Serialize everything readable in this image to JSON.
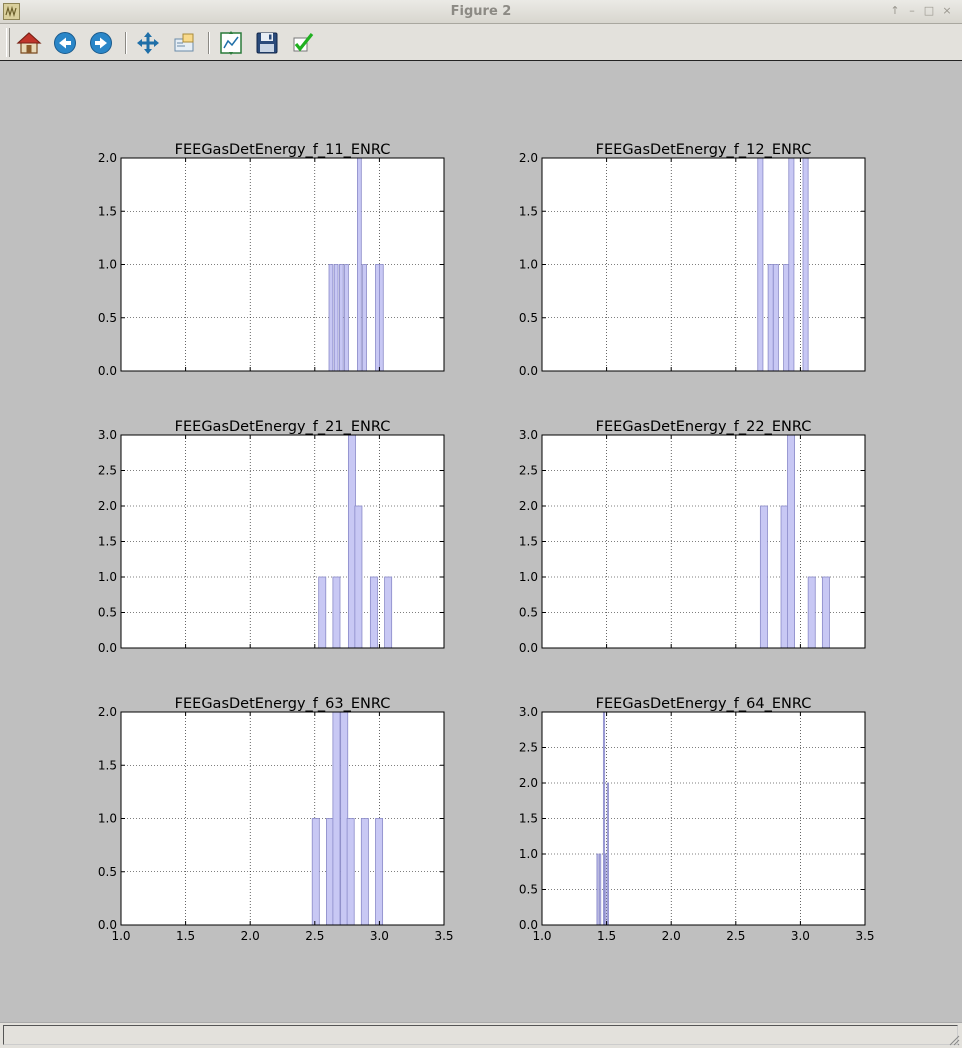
{
  "window": {
    "title": "Figure 2"
  },
  "toolbar": {
    "buttons": [
      {
        "name": "home-button",
        "icon": "home-icon"
      },
      {
        "name": "back-button",
        "icon": "back-arrow-icon"
      },
      {
        "name": "forward-button",
        "icon": "forward-arrow-icon"
      },
      {
        "name": "pan-button",
        "icon": "move-arrows-icon"
      },
      {
        "name": "zoom-button",
        "icon": "zoom-rect-icon"
      },
      {
        "name": "subplots-button",
        "icon": "subplots-icon"
      },
      {
        "name": "save-button",
        "icon": "floppy-disk-icon"
      },
      {
        "name": "edit-button",
        "icon": "checkmark-icon"
      }
    ]
  },
  "colors": {
    "bar_fill": "#c8c8f4",
    "bar_edge": "#8a8ac8",
    "figure_bg": "#bfbfbf",
    "axes_bg": "#ffffff"
  },
  "chart_data": [
    {
      "type": "bar",
      "title": "FEEGasDetEnergy_f_11_ENRC",
      "xlim": [
        1.0,
        3.5
      ],
      "ylim": [
        0.0,
        2.0
      ],
      "xticks": [
        "1.0",
        "1.5",
        "2.0",
        "2.5",
        "3.0",
        "3.5"
      ],
      "yticks": [
        "0.0",
        "0.5",
        "1.0",
        "1.5",
        "2.0"
      ],
      "show_xticklabels": false,
      "grid": true,
      "bars": [
        {
          "x": 2.61,
          "width": 0.03,
          "height": 1
        },
        {
          "x": 2.65,
          "width": 0.03,
          "height": 1
        },
        {
          "x": 2.69,
          "width": 0.03,
          "height": 1
        },
        {
          "x": 2.73,
          "width": 0.03,
          "height": 1
        },
        {
          "x": 2.83,
          "width": 0.03,
          "height": 2
        },
        {
          "x": 2.87,
          "width": 0.03,
          "height": 1
        },
        {
          "x": 2.97,
          "width": 0.03,
          "height": 1
        },
        {
          "x": 3.0,
          "width": 0.03,
          "height": 1
        }
      ]
    },
    {
      "type": "bar",
      "title": "FEEGasDetEnergy_f_12_ENRC",
      "xlim": [
        1.0,
        3.5
      ],
      "ylim": [
        0.0,
        2.0
      ],
      "xticks": [
        "1.0",
        "1.5",
        "2.0",
        "2.5",
        "3.0",
        "3.5"
      ],
      "yticks": [
        "0.0",
        "0.5",
        "1.0",
        "1.5",
        "2.0"
      ],
      "show_xticklabels": false,
      "grid": true,
      "bars": [
        {
          "x": 2.67,
          "width": 0.04,
          "height": 2
        },
        {
          "x": 2.75,
          "width": 0.04,
          "height": 1
        },
        {
          "x": 2.79,
          "width": 0.04,
          "height": 1
        },
        {
          "x": 2.87,
          "width": 0.04,
          "height": 1
        },
        {
          "x": 2.91,
          "width": 0.04,
          "height": 2
        },
        {
          "x": 3.02,
          "width": 0.04,
          "height": 2
        }
      ]
    },
    {
      "type": "bar",
      "title": "FEEGasDetEnergy_f_21_ENRC",
      "xlim": [
        1.0,
        3.5
      ],
      "ylim": [
        0.0,
        3.0
      ],
      "xticks": [
        "1.0",
        "1.5",
        "2.0",
        "2.5",
        "3.0",
        "3.5"
      ],
      "yticks": [
        "0.0",
        "0.5",
        "1.0",
        "1.5",
        "2.0",
        "2.5",
        "3.0"
      ],
      "show_xticklabels": false,
      "grid": true,
      "bars": [
        {
          "x": 2.53,
          "width": 0.055,
          "height": 1
        },
        {
          "x": 2.64,
          "width": 0.055,
          "height": 1
        },
        {
          "x": 2.76,
          "width": 0.055,
          "height": 3
        },
        {
          "x": 2.81,
          "width": 0.055,
          "height": 2
        },
        {
          "x": 2.93,
          "width": 0.055,
          "height": 1
        },
        {
          "x": 3.04,
          "width": 0.055,
          "height": 1
        }
      ]
    },
    {
      "type": "bar",
      "title": "FEEGasDetEnergy_f_22_ENRC",
      "xlim": [
        1.0,
        3.5
      ],
      "ylim": [
        0.0,
        3.0
      ],
      "xticks": [
        "1.0",
        "1.5",
        "2.0",
        "2.5",
        "3.0",
        "3.5"
      ],
      "yticks": [
        "0.0",
        "0.5",
        "1.0",
        "1.5",
        "2.0",
        "2.5",
        "3.0"
      ],
      "show_xticklabels": false,
      "grid": true,
      "bars": [
        {
          "x": 2.69,
          "width": 0.055,
          "height": 2
        },
        {
          "x": 2.85,
          "width": 0.055,
          "height": 2
        },
        {
          "x": 2.9,
          "width": 0.055,
          "height": 3
        },
        {
          "x": 3.06,
          "width": 0.055,
          "height": 1
        },
        {
          "x": 3.17,
          "width": 0.055,
          "height": 1
        }
      ]
    },
    {
      "type": "bar",
      "title": "FEEGasDetEnergy_f_63_ENRC",
      "xlim": [
        1.0,
        3.5
      ],
      "ylim": [
        0.0,
        2.0
      ],
      "xticks": [
        "1.0",
        "1.5",
        "2.0",
        "2.5",
        "3.0",
        "3.5"
      ],
      "yticks": [
        "0.0",
        "0.5",
        "1.0",
        "1.5",
        "2.0"
      ],
      "show_xticklabels": true,
      "grid": true,
      "bars": [
        {
          "x": 2.48,
          "width": 0.055,
          "height": 1
        },
        {
          "x": 2.59,
          "width": 0.055,
          "height": 1
        },
        {
          "x": 2.64,
          "width": 0.055,
          "height": 2
        },
        {
          "x": 2.7,
          "width": 0.055,
          "height": 2
        },
        {
          "x": 2.75,
          "width": 0.055,
          "height": 1
        },
        {
          "x": 2.86,
          "width": 0.055,
          "height": 1
        },
        {
          "x": 2.97,
          "width": 0.055,
          "height": 1
        }
      ]
    },
    {
      "type": "bar",
      "title": "FEEGasDetEnergy_f_64_ENRC",
      "xlim": [
        1.0,
        3.5
      ],
      "ylim": [
        0.0,
        3.0
      ],
      "xticks": [
        "1.0",
        "1.5",
        "2.0",
        "2.5",
        "3.0",
        "3.5"
      ],
      "yticks": [
        "0.0",
        "0.5",
        "1.0",
        "1.5",
        "2.0",
        "2.5",
        "3.0"
      ],
      "show_xticklabels": true,
      "grid": true,
      "bars": [
        {
          "x": 1.425,
          "width": 0.01,
          "height": 1
        },
        {
          "x": 1.445,
          "width": 0.01,
          "height": 1
        },
        {
          "x": 1.475,
          "width": 0.01,
          "height": 3
        },
        {
          "x": 1.485,
          "width": 0.01,
          "height": 1
        },
        {
          "x": 1.505,
          "width": 0.01,
          "height": 2
        }
      ]
    }
  ]
}
